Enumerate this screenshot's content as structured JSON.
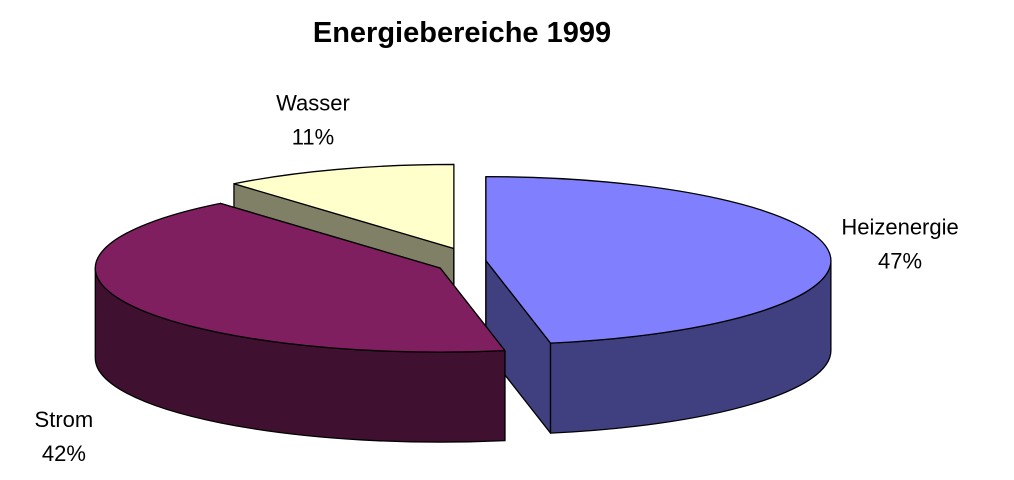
{
  "chart_data": {
    "type": "pie",
    "title": "Energiebereiche 1999",
    "categories": [
      "Heizenergie",
      "Strom",
      "Wasser"
    ],
    "values": [
      47,
      42,
      11
    ],
    "value_labels": [
      "47%",
      "42%",
      "11%"
    ],
    "colors": [
      "#8080ff",
      "#7f1f5f",
      "#ffffcc"
    ]
  }
}
